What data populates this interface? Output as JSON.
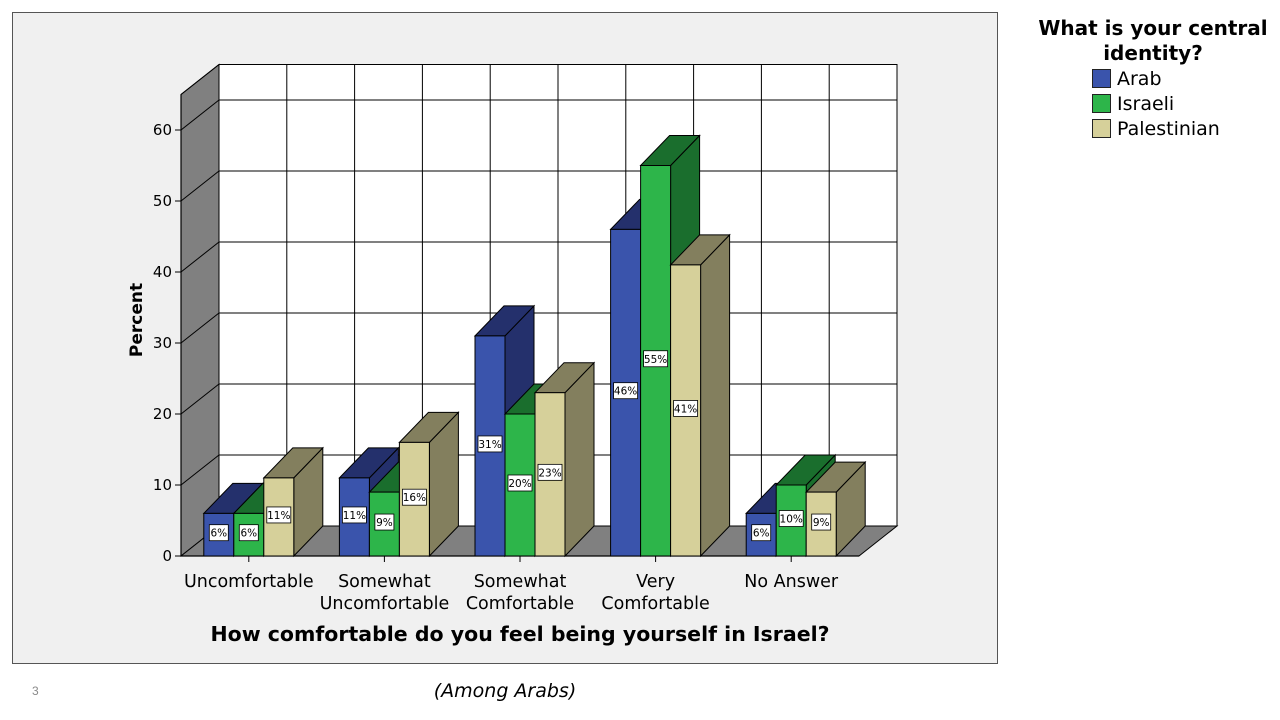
{
  "chart_data": {
    "type": "bar",
    "variant": "3d-clustered",
    "xlabel": "How comfortable do you feel being yourself in Israel?",
    "ylabel": "Percent",
    "ylim": [
      0,
      65
    ],
    "yticks": [
      0,
      10,
      20,
      30,
      40,
      50,
      60
    ],
    "grid": true,
    "legend_position": "top-right",
    "legend_title": "What is your central identity?",
    "categories": [
      [
        "Uncomfortable"
      ],
      [
        "Somewhat",
        "Uncomfortable"
      ],
      [
        "Somewhat",
        "Comfortable"
      ],
      [
        "Very",
        "Comfortable"
      ],
      [
        "No Answer"
      ]
    ],
    "series": [
      {
        "name": "Arab",
        "values": [
          6,
          11,
          31,
          46,
          6
        ],
        "labels": [
          "6%",
          "11%",
          "31%",
          "46%",
          "6%"
        ],
        "color": "#3a54ac",
        "side_color": "#24306c"
      },
      {
        "name": "Israeli",
        "values": [
          6,
          9,
          20,
          55,
          10
        ],
        "labels": [
          "6%",
          "9%",
          "20%",
          "55%",
          "10%"
        ],
        "color": "#2db54a",
        "side_color": "#1a6e2d"
      },
      {
        "name": "Palestinian",
        "values": [
          11,
          16,
          23,
          41,
          9
        ],
        "labels": [
          "11%",
          "16%",
          "23%",
          "41%",
          "9%"
        ],
        "color": "#d6d09a",
        "side_color": "#837f5e"
      }
    ]
  },
  "footnote": "(Among Arabs)",
  "page_number": "3"
}
